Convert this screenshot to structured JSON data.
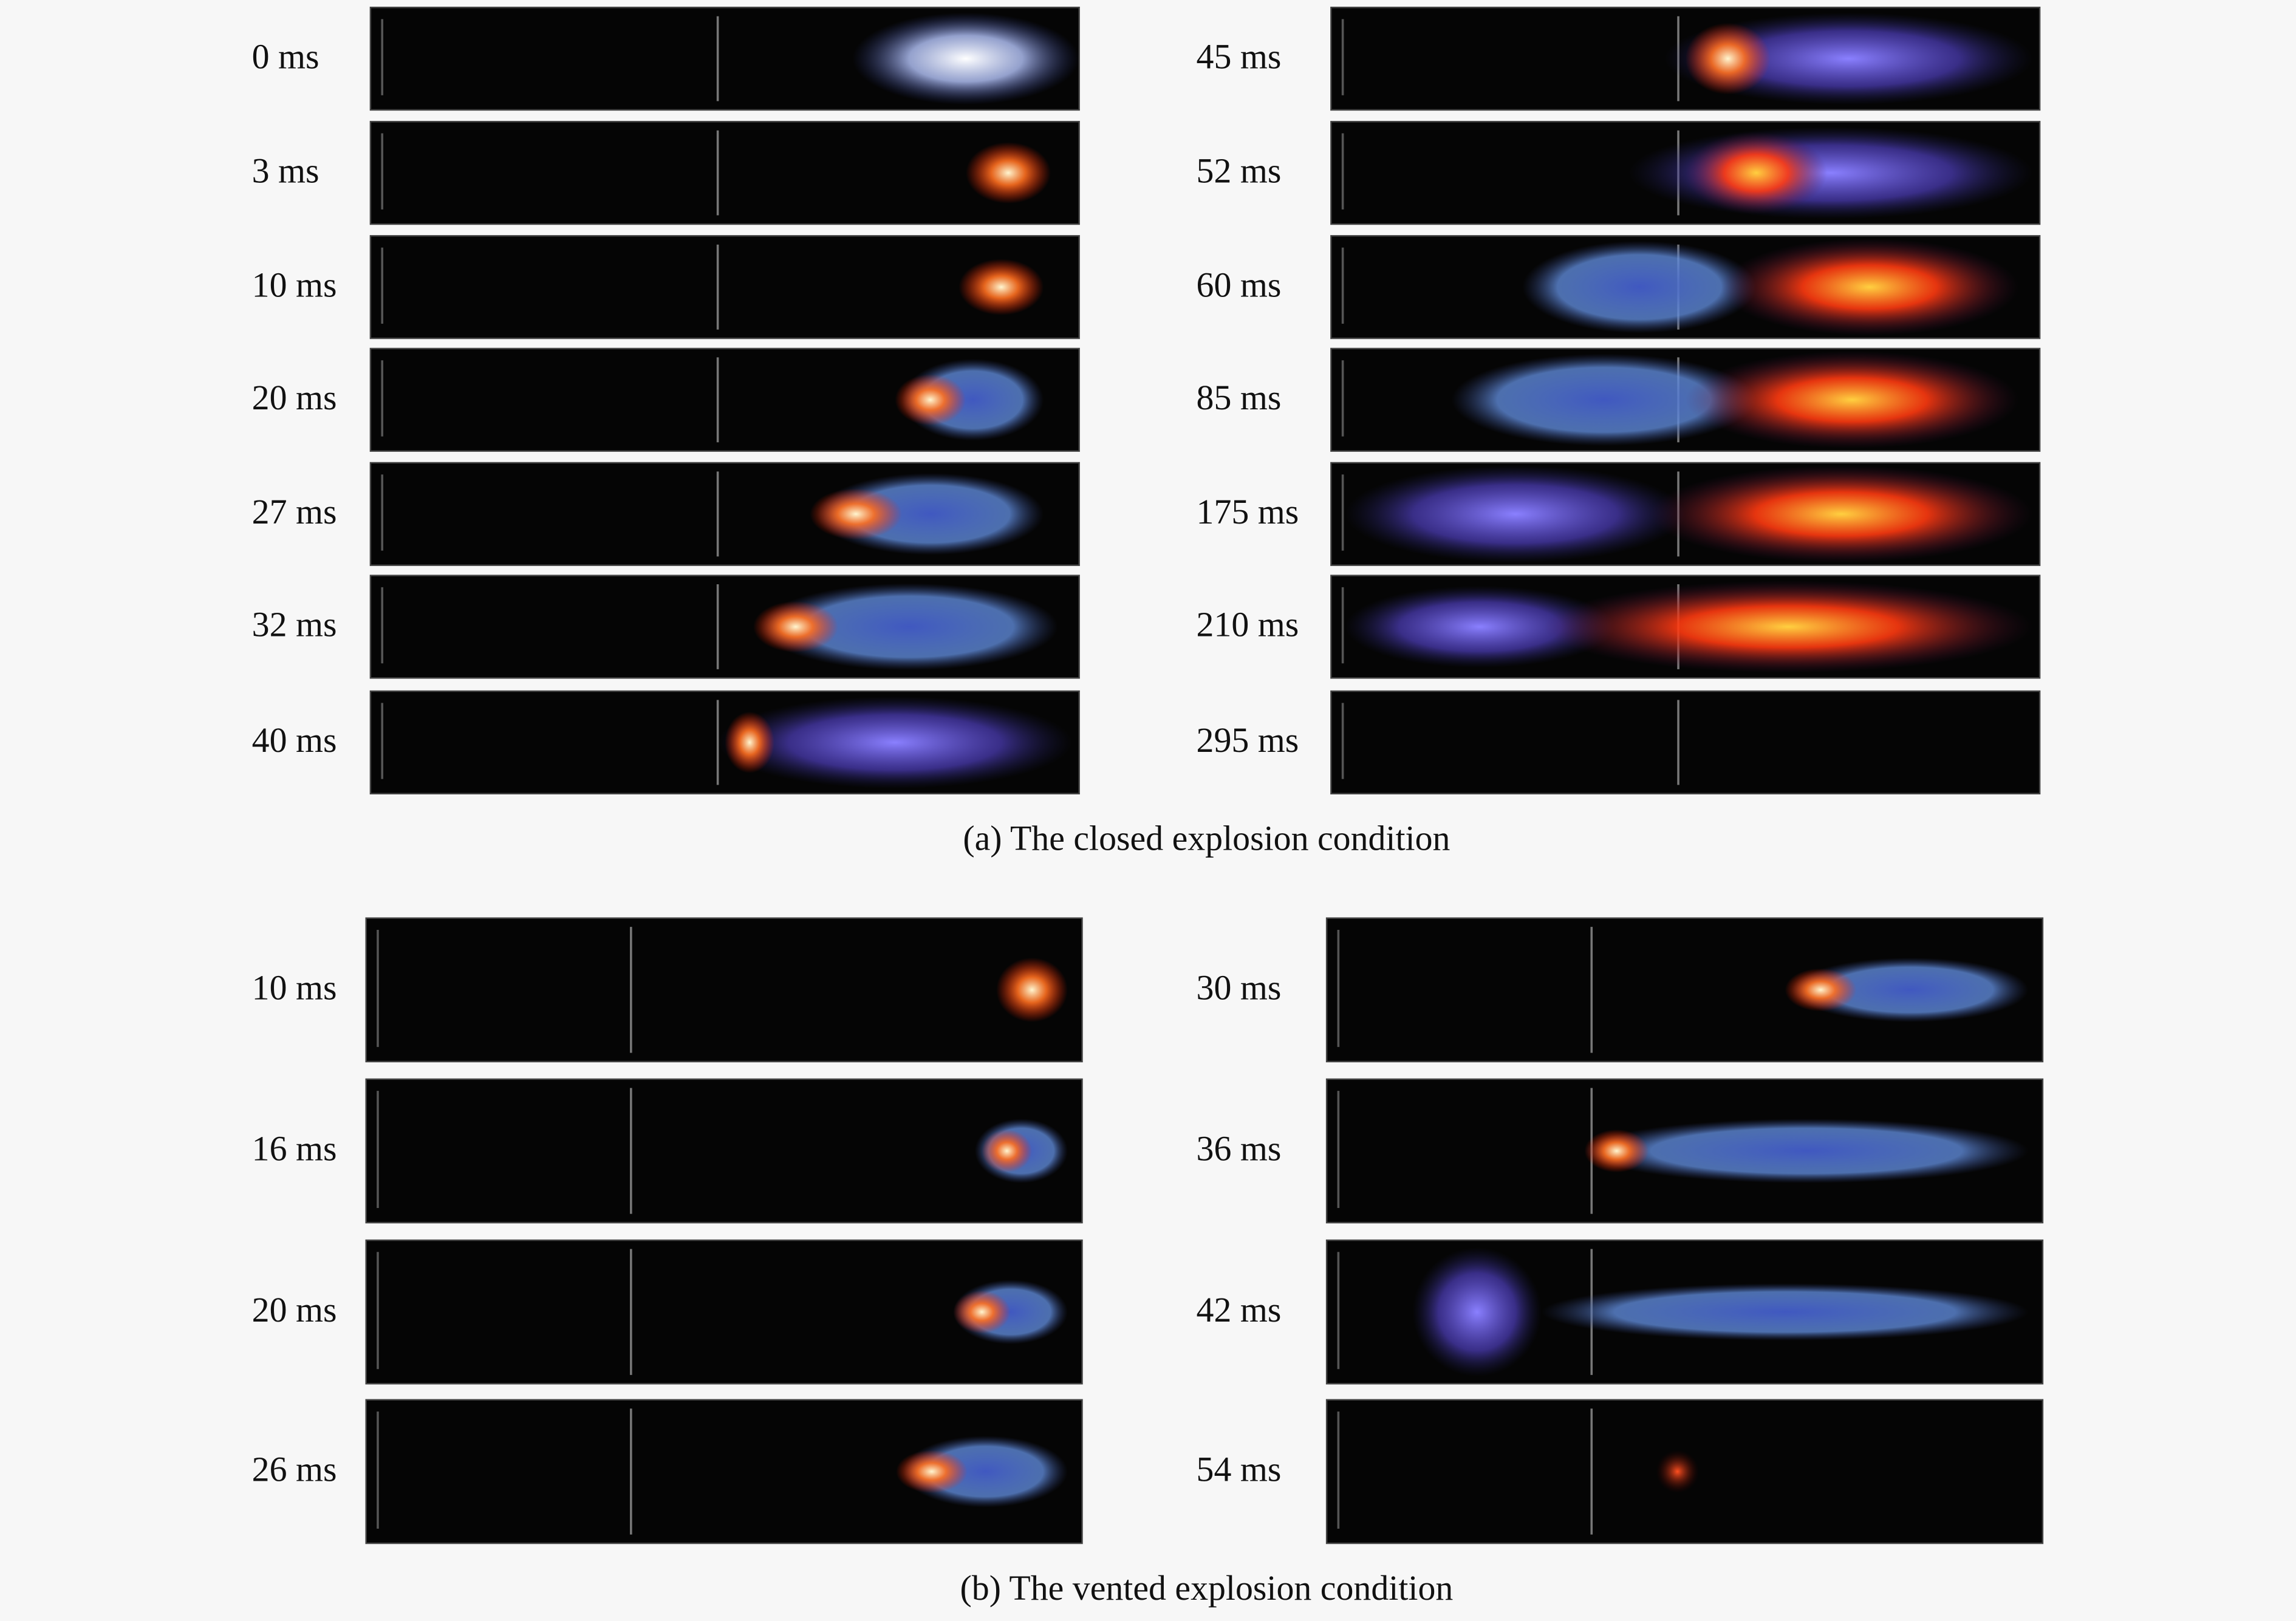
{
  "panels": [
    {
      "caption": "(a) The closed explosion condition",
      "columns": [
        [
          "0 ms",
          "3 ms",
          "10 ms",
          "20 ms",
          "27 ms",
          "32 ms",
          "40 ms"
        ],
        [
          "45 ms",
          "52 ms",
          "60 ms",
          "85 ms",
          "175 ms",
          "210 ms",
          "295 ms"
        ]
      ]
    },
    {
      "caption": "(b) The vented explosion condition",
      "columns": [
        [
          "10 ms",
          "16 ms",
          "20 ms",
          "26 ms"
        ],
        [
          "30 ms",
          "36 ms",
          "42 ms",
          "54 ms"
        ]
      ]
    }
  ]
}
